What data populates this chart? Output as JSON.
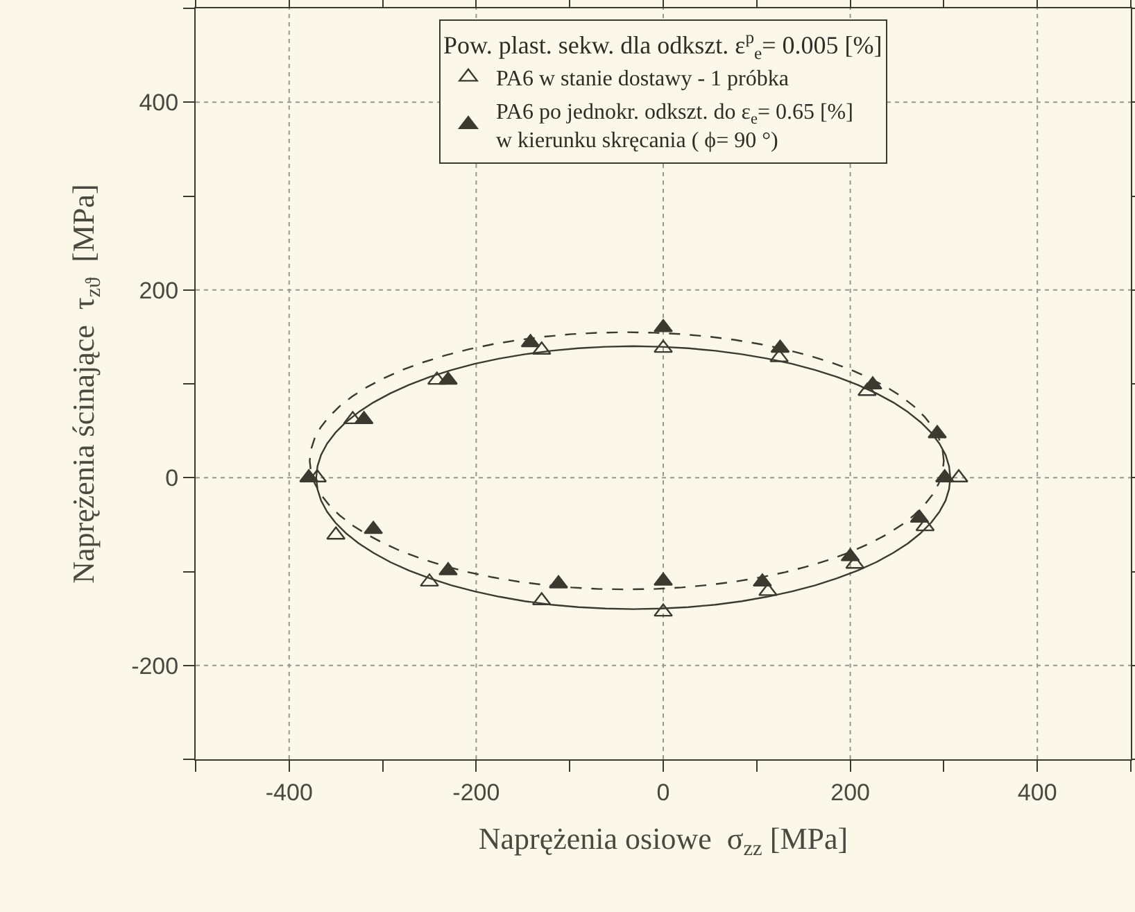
{
  "chart_data": {
    "type": "scatter",
    "xlabel": "Naprężenia osiowe  σ$_{zz}$ [MPa]",
    "ylabel": "Naprężenia ścinające  τ$_{zϑ}$  [MPa]",
    "legend_title": "Pow. plast. sekw. dla odkszt. ε$^{p}$$_{e}$= 0.005 [%]",
    "legend": "top",
    "grid": true,
    "marker": "triangle",
    "xlim": [
      -500,
      500
    ],
    "xticks": [
      {
        "value": -500,
        "label": null
      },
      -400,
      {
        "value": -300,
        "label": null
      },
      -200,
      {
        "value": -100,
        "label": null
      },
      0,
      {
        "value": 100,
        "label": null
      },
      200,
      {
        "value": 300,
        "label": null
      },
      400,
      {
        "value": 500,
        "label": null
      }
    ],
    "ylim": [
      -300,
      500
    ],
    "yticks": [
      {
        "value": -300,
        "label": null
      },
      -200,
      {
        "value": -100,
        "label": null
      },
      0,
      {
        "value": 100,
        "label": null
      },
      200,
      {
        "value": 300,
        "label": null
      },
      400,
      {
        "value": 500,
        "label": null
      }
    ],
    "series": [
      {
        "name": "PA6 w stanie dostawy - 1 próbka",
        "color": "#3b3a30",
        "x": [
          -370,
          -332,
          -242,
          -130,
          0,
          124,
          218,
          316,
          280,
          205,
          112,
          0,
          -130,
          -250,
          -350
        ],
        "values": [
          0,
          62,
          104,
          136,
          138,
          128,
          92,
          0,
          -52,
          -92,
          -121,
          -143,
          -131,
          -111,
          -61
        ]
      },
      {
        "name": "PA6 po jednokr. odkszt. do ε$_{e}$= 0.65 [%]\nw kierunku skręcania ( ϕ= 90 °)",
        "color": "#3b3a30",
        "x": [
          -379,
          -320,
          -230,
          -142,
          0,
          125,
          224,
          293,
          301,
          274,
          200,
          106,
          0,
          -112,
          -230,
          -310
        ],
        "values": [
          0,
          62,
          104,
          144,
          160,
          138,
          99,
          47,
          0,
          -43,
          -84,
          -111,
          -110,
          -113,
          -99,
          -55
        ]
      }
    ]
  }
}
